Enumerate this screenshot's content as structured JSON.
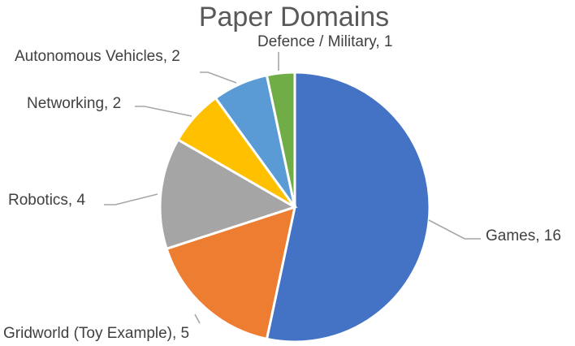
{
  "chart_data": {
    "type": "pie",
    "title": "Paper Domains",
    "slices": [
      {
        "label": "Games",
        "value": 16,
        "color": "#4472C4"
      },
      {
        "label": "Gridworld (Toy Example)",
        "value": 5,
        "color": "#ED7D31"
      },
      {
        "label": "Robotics",
        "value": 4,
        "color": "#A5A5A5"
      },
      {
        "label": "Networking",
        "value": 2,
        "color": "#FFC000"
      },
      {
        "label": "Autonomous Vehicles",
        "value": 2,
        "color": "#5B9BD5"
      },
      {
        "label": "Defence / Military",
        "value": 1,
        "color": "#70AD47"
      }
    ],
    "data_labels": [
      "Games, 16",
      "Gridworld (Toy Example), 5",
      "Robotics, 4",
      "Networking, 2",
      "Autonomous Vehicles, 2",
      "Defence / Military, 1"
    ],
    "legend": "none",
    "start_angle": "12 o'clock",
    "direction": "clockwise"
  }
}
